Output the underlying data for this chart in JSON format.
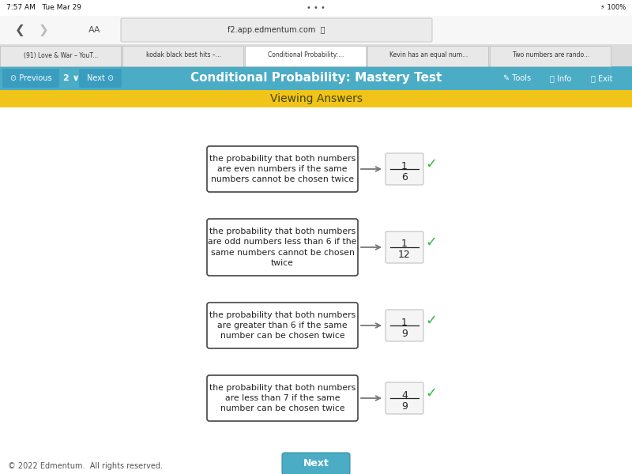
{
  "title": "Conditional Probability: Mastery Test",
  "subtitle": "Viewing Answers",
  "status_text": "7:57 AM   Tue Mar 29",
  "url_text": "f2.app.edmentum.com",
  "header_bg": "#4BACC6",
  "subtitle_bg": "#F0C419",
  "page_bg": "#EDEDED",
  "tab_bg": "#E8E8E8",
  "nav_bg": "#F7F7F7",
  "status_bg": "#FFFFFF",
  "content_bg": "#FFFFFF",
  "footer_bg": "#FFFFFF",
  "boxes": [
    {
      "text": "the probability that both numbers\nare even numbers if the same\nnumbers cannot be chosen twice",
      "fraction_num": "1",
      "fraction_den": "6"
    },
    {
      "text": "the probability that both numbers\nare odd numbers less than 6 if the\nsame numbers cannot be chosen\ntwice",
      "fraction_num": "1",
      "fraction_den": "12"
    },
    {
      "text": "the probability that both numbers\nare greater than 6 if the same\nnumber can be chosen twice",
      "fraction_num": "1",
      "fraction_den": "9"
    },
    {
      "text": "the probability that both numbers\nare less than 7 if the same\nnumber can be chosen twice",
      "fraction_num": "4",
      "fraction_den": "9"
    }
  ],
  "check_color": "#3CB84A",
  "text_color": "#222222",
  "box_edge_color": "#444444",
  "frac_box_edge": "#CCCCCC",
  "frac_box_bg": "#F5F5F5",
  "next_btn_color": "#4BACC6",
  "copyright_text": "© 2022 Edmentum.  All rights reserved."
}
